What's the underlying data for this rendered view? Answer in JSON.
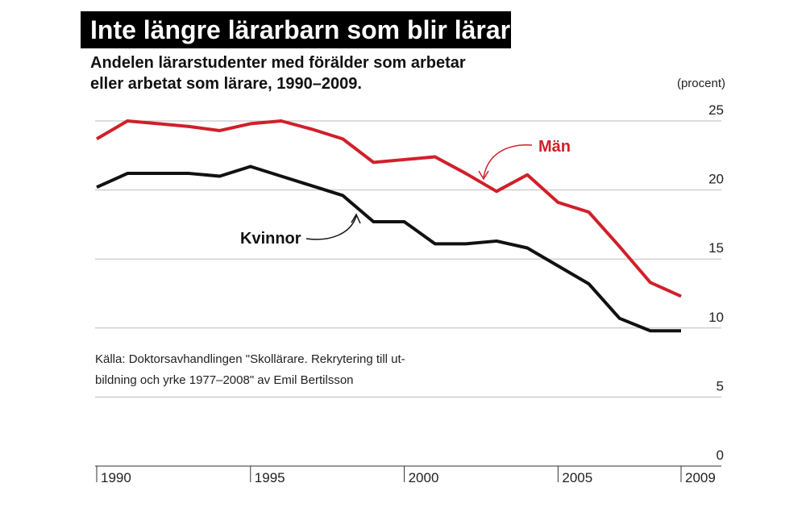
{
  "chart_data": {
    "type": "line",
    "title": "Inte längre lärarbarn som blir lärare",
    "subtitle": [
      "Andelen lärarstudenter med förälder som arbetar",
      "eller arbetat som lärare, 1990–2009."
    ],
    "y_label": "(procent)",
    "source": [
      "Källa: Doktorsavhandlingen \"Skollärare. Rekrytering till ut-",
      "bildning och yrke 1977–2008\" av Emil Bertilsson"
    ],
    "x": [
      1990,
      1991,
      1992,
      1993,
      1994,
      1995,
      1996,
      1997,
      1998,
      1999,
      2000,
      2001,
      2002,
      2003,
      2004,
      2005,
      2006,
      2007,
      2008,
      2009
    ],
    "series": [
      {
        "name": "Män",
        "color": "#d0202a",
        "values": [
          23.7,
          25.0,
          24.8,
          24.6,
          24.3,
          24.8,
          25.0,
          24.4,
          23.7,
          22.0,
          22.2,
          22.4,
          21.2,
          19.9,
          21.1,
          19.1,
          18.4,
          15.9,
          13.3,
          12.3
        ]
      },
      {
        "name": "Kvinnor",
        "color": "#111111",
        "values": [
          20.2,
          21.2,
          21.2,
          21.2,
          21.0,
          21.7,
          21.0,
          20.3,
          19.6,
          17.7,
          17.7,
          16.1,
          16.1,
          16.3,
          15.8,
          14.5,
          13.2,
          10.7,
          9.8,
          9.8
        ]
      }
    ],
    "xlim": [
      1990,
      2009
    ],
    "xticks": [
      1990,
      1995,
      2000,
      2005,
      2009
    ],
    "ylim": [
      0,
      25
    ],
    "yticks": [
      0,
      5,
      10,
      15,
      20,
      25
    ],
    "grid": true
  }
}
